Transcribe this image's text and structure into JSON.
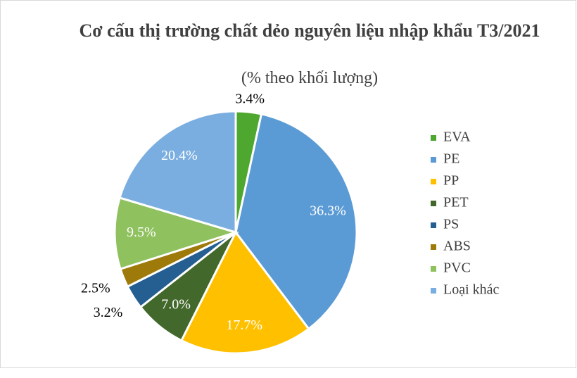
{
  "chart_data": {
    "type": "pie",
    "title": "Cơ cấu thị trường chất dẻo nguyên liệu nhập khẩu T3/2021",
    "subtitle": "(% theo khối lượng)",
    "categories": [
      "EVA",
      "PE",
      "PP",
      "PET",
      "PS",
      "ABS",
      "PVC",
      "Loại khác"
    ],
    "values": [
      3.4,
      36.3,
      17.7,
      7.0,
      3.2,
      2.5,
      9.5,
      20.4
    ],
    "value_labels": [
      "3.4%",
      "36.3%",
      "17.7%",
      "7.0%",
      "3.2%",
      "2.5%",
      "9.5%",
      "20.4%"
    ],
    "colors": [
      "#4ea72e",
      "#5b9bd5",
      "#ffc000",
      "#43682b",
      "#255e91",
      "#9e7a0b",
      "#8fc15f",
      "#7aaee0"
    ],
    "legend": "right"
  }
}
